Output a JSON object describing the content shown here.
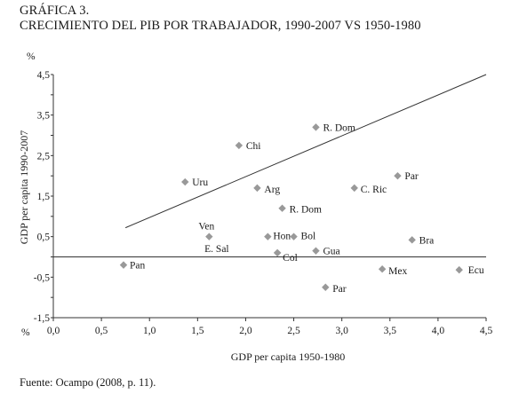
{
  "chart_data": {
    "type": "scatter",
    "title": "GRÁFICA 3.",
    "subtitle": "CRECIMIENTO DEL PIB POR TRABAJADOR, 1990-2007 VS 1950-1980",
    "xlabel": "GDP per capita 1950-1980",
    "ylabel": "GDP per capita 1990-2007",
    "x_unit": "%",
    "y_unit": "%",
    "xlim": [
      0,
      4.5
    ],
    "ylim": [
      -1.5,
      4.5
    ],
    "x_ticks": [
      "0,0",
      "0,5",
      "1,0",
      "1,5",
      "2,0",
      "2,5",
      "3,0",
      "3,5",
      "4,0",
      "4,5"
    ],
    "y_ticks": [
      "4,5",
      "3,5",
      "2,5",
      "1,5",
      "0,5",
      "-0,5",
      "-1,5"
    ],
    "grid": false,
    "colors": {
      "marker": "#999999",
      "line": "#333333"
    },
    "points": [
      {
        "label": "R. Dom",
        "x": 2.73,
        "y": 3.2
      },
      {
        "label": "Chi",
        "x": 1.93,
        "y": 2.75
      },
      {
        "label": "Par",
        "x": 3.58,
        "y": 2.0
      },
      {
        "label": "Uru",
        "x": 1.37,
        "y": 1.85
      },
      {
        "label": "Arg",
        "x": 2.12,
        "y": 1.7
      },
      {
        "label": "C. Ric",
        "x": 3.13,
        "y": 1.7
      },
      {
        "label": "R. Dom",
        "x": 2.38,
        "y": 1.2
      },
      {
        "label": "Ven",
        "x": 1.62,
        "y": 0.5
      },
      {
        "label": "Hon",
        "x": 2.23,
        "y": 0.5
      },
      {
        "label": "Bol",
        "x": 2.5,
        "y": 0.5
      },
      {
        "label": "Bra",
        "x": 3.73,
        "y": 0.42
      },
      {
        "label": "E. Sal",
        "x": 2.33,
        "y": 0.1
      },
      {
        "label": "Gua",
        "x": 2.73,
        "y": 0.15
      },
      {
        "label": "Col",
        "x": 2.33,
        "y": 0.1
      },
      {
        "label": "Pan",
        "x": 0.73,
        "y": -0.2
      },
      {
        "label": "Mex",
        "x": 3.42,
        "y": -0.3
      },
      {
        "label": "Ecu",
        "x": 4.22,
        "y": -0.32
      },
      {
        "label": "Par",
        "x": 2.83,
        "y": -0.75
      }
    ],
    "trend_line": {
      "x": [
        0.75,
        4.5
      ],
      "y": [
        0.72,
        4.5
      ]
    },
    "reference_line_y": 0
  },
  "source": "Fuente: Ocampo (2008, p. 11)."
}
